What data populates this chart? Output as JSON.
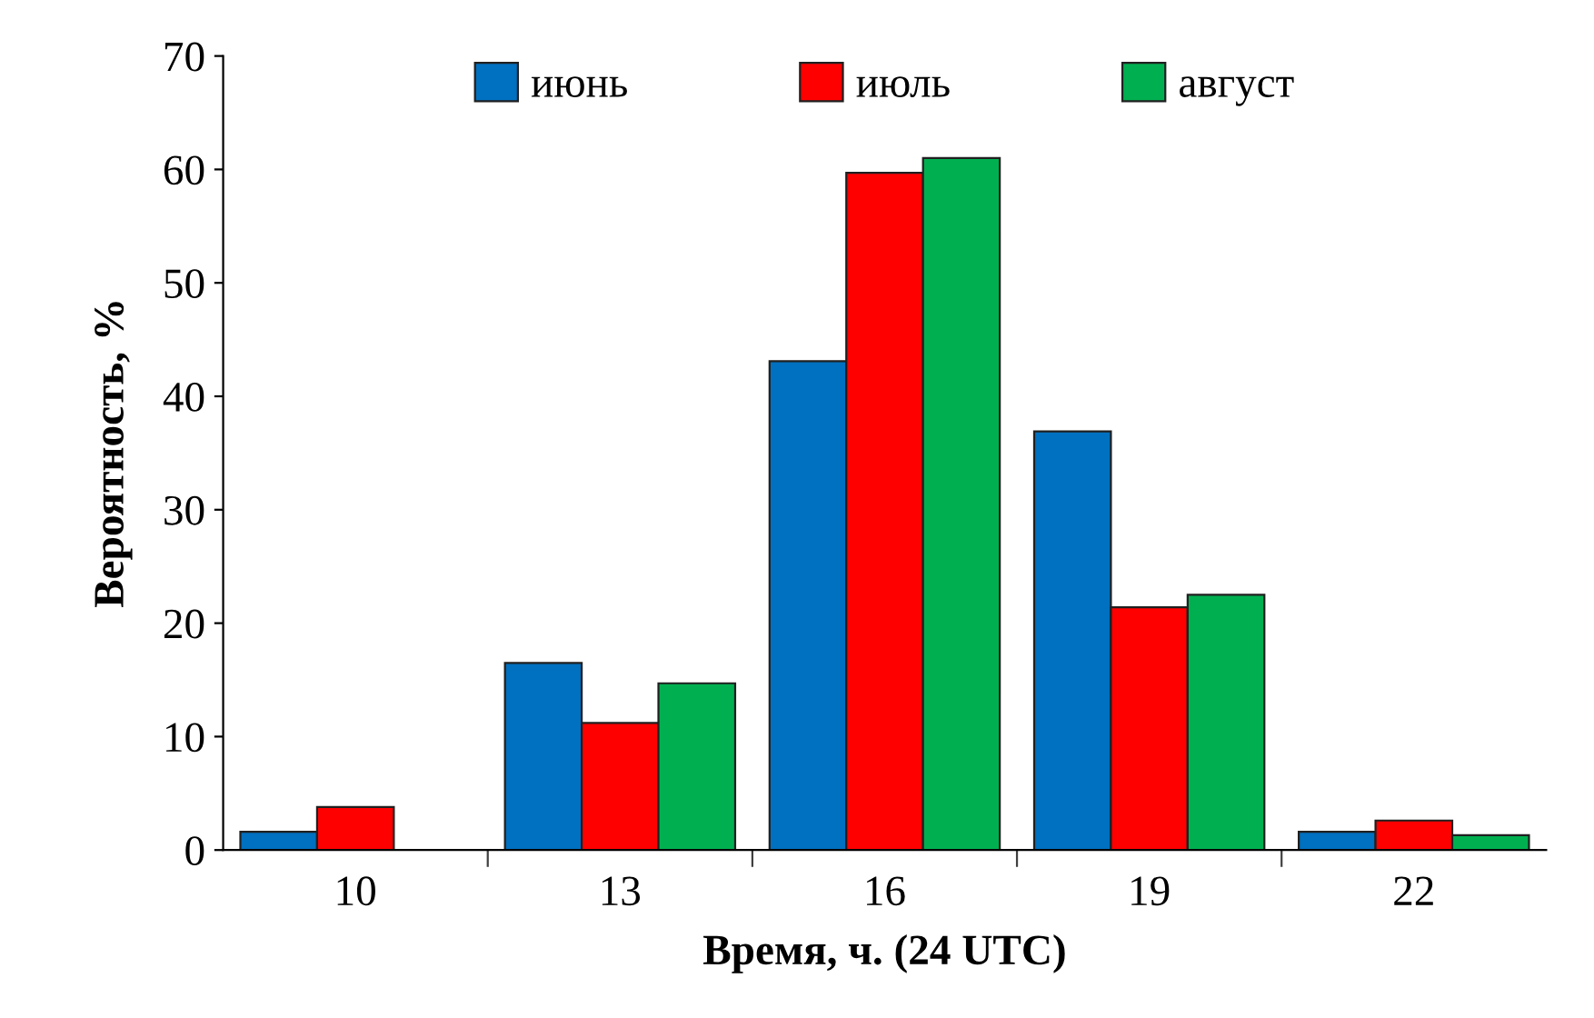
{
  "chart_data": {
    "type": "bar",
    "xlabel": "Время, ч. (24 UTC)",
    "ylabel": "Вероятность, %",
    "categories": [
      "10",
      "13",
      "16",
      "19",
      "22"
    ],
    "series": [
      {
        "name": "июнь",
        "color": "#0070c0",
        "values": [
          1.6,
          16.5,
          43.1,
          36.9,
          1.6
        ]
      },
      {
        "name": "июль",
        "color": "#ff0000",
        "values": [
          3.8,
          11.2,
          59.7,
          21.4,
          2.6
        ]
      },
      {
        "name": "август",
        "color": "#00b050",
        "values": [
          null,
          14.7,
          61.0,
          22.5,
          1.3
        ]
      }
    ],
    "ylim": [
      0,
      70
    ],
    "yticks": [
      0,
      10,
      20,
      30,
      40,
      50,
      60,
      70
    ],
    "grid": false,
    "legend": "top"
  }
}
